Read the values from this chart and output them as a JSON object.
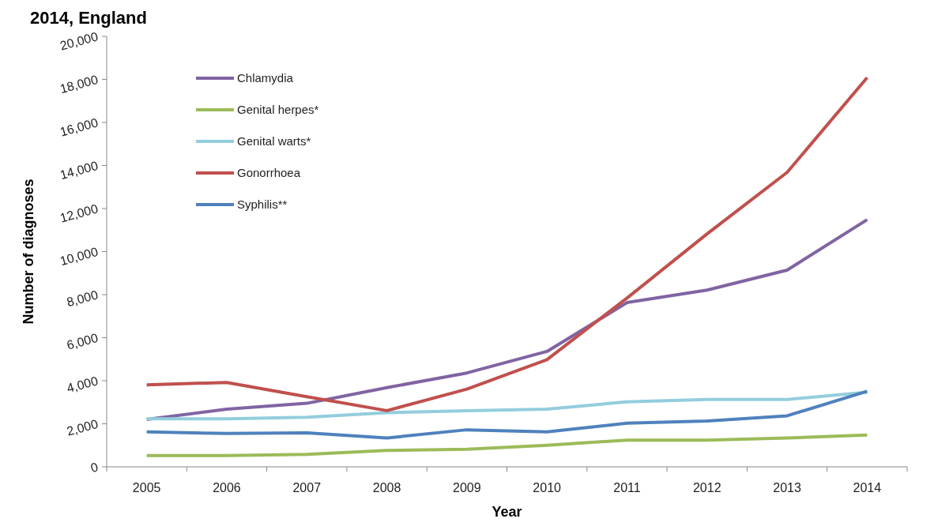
{
  "chart_data": {
    "type": "line",
    "title": "2014, England",
    "xlabel": "Year",
    "ylabel": "Number of diagnoses",
    "categories": [
      "2005",
      "2006",
      "2007",
      "2008",
      "2009",
      "2010",
      "2011",
      "2012",
      "2013",
      "2014"
    ],
    "series": [
      {
        "name": "Chlamydia",
        "color": "#8064a2",
        "values": [
          2200,
          2680,
          2950,
          3680,
          4360,
          5360,
          7630,
          8210,
          9140,
          11480
        ]
      },
      {
        "name": "Genital herpes*",
        "color": "#9bbb59",
        "values": [
          520,
          520,
          580,
          760,
          820,
          1000,
          1240,
          1240,
          1340,
          1480
        ]
      },
      {
        "name": "Genital warts*",
        "color": "#93cddd",
        "values": [
          2230,
          2230,
          2300,
          2510,
          2610,
          2680,
          3020,
          3130,
          3130,
          3470
        ]
      },
      {
        "name": "Gonorrhoea",
        "color": "#c0504d",
        "values": [
          3810,
          3920,
          3260,
          2610,
          3610,
          4980,
          7840,
          10820,
          13680,
          18080
        ]
      },
      {
        "name": "Syphilis**",
        "color": "#4f81bd",
        "values": [
          1620,
          1550,
          1580,
          1340,
          1720,
          1620,
          2030,
          2130,
          2370,
          3510
        ]
      }
    ],
    "ylim": [
      0,
      20000
    ],
    "yticks": [
      {
        "value": 0,
        "label": "0"
      },
      {
        "value": 2000,
        "label": "2,000"
      },
      {
        "value": 4000,
        "label": "4,000"
      },
      {
        "value": 6000,
        "label": "6,000"
      },
      {
        "value": 8000,
        "label": "8,000"
      },
      {
        "value": 10000,
        "label": "10,000"
      },
      {
        "value": 12000,
        "label": "12,000"
      },
      {
        "value": 14000,
        "label": "14,000"
      },
      {
        "value": 16000,
        "label": "16,000"
      },
      {
        "value": 18000,
        "label": "18,000"
      },
      {
        "value": 20000,
        "label": "20,000"
      }
    ],
    "grid": false,
    "legend": "top left",
    "marker": "none",
    "line_style": "solid"
  }
}
